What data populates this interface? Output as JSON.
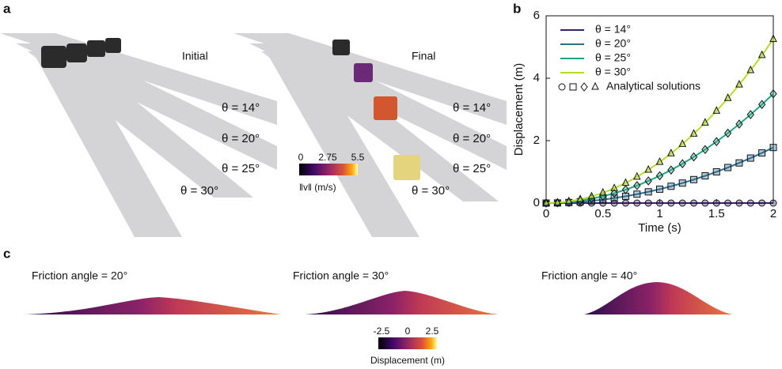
{
  "panel_a": {
    "label": "a",
    "initial": "Initial",
    "final": "Final",
    "angles_initial": [
      "θ = 14°",
      "θ = 20°",
      "θ = 25°",
      "θ = 30°"
    ],
    "angles_final": [
      "θ = 14°",
      "θ = 20°",
      "θ = 25°",
      "θ = 30°"
    ],
    "colorbar": {
      "ticks": [
        "0",
        "2.75",
        "5.5"
      ],
      "label": "‖v‖ (m/s)"
    }
  },
  "chart_data": {
    "type": "line",
    "panel_label": "b",
    "x_label": "Time (s)",
    "y_label": "Displacement (m)",
    "x": [
      0,
      0.1,
      0.2,
      0.3,
      0.4,
      0.5,
      0.6,
      0.7,
      0.8,
      0.9,
      1,
      1.1,
      1.2,
      1.3,
      1.4,
      1.5,
      1.6,
      1.7,
      1.8,
      1.9,
      2
    ],
    "series": [
      {
        "name": "θ = 14°",
        "color": "#3b1f6b",
        "marker": "circle",
        "values": [
          0,
          0,
          0,
          0,
          0,
          0,
          0,
          0,
          0,
          0,
          0,
          0,
          0,
          0,
          0,
          0,
          0,
          0,
          0,
          0,
          0
        ]
      },
      {
        "name": "θ = 20°",
        "color": "#2e6e8e",
        "marker": "square",
        "values": [
          0,
          0.004,
          0.018,
          0.04,
          0.071,
          0.111,
          0.16,
          0.218,
          0.285,
          0.36,
          0.445,
          0.538,
          0.641,
          0.752,
          0.872,
          1.001,
          1.139,
          1.286,
          1.442,
          1.606,
          1.78
        ]
      },
      {
        "name": "θ = 25°",
        "color": "#21a585",
        "marker": "diamond",
        "values": [
          0,
          0.009,
          0.035,
          0.079,
          0.14,
          0.219,
          0.315,
          0.429,
          0.56,
          0.709,
          0.875,
          1.059,
          1.26,
          1.479,
          1.715,
          1.969,
          2.24,
          2.529,
          2.835,
          3.159,
          3.5
        ]
      },
      {
        "name": "θ = 30°",
        "color": "#b5de2b",
        "marker": "triangle",
        "values": [
          0,
          0.013,
          0.053,
          0.118,
          0.21,
          0.328,
          0.473,
          0.643,
          0.84,
          1.063,
          1.313,
          1.588,
          1.89,
          2.218,
          2.573,
          2.953,
          3.36,
          3.793,
          4.253,
          4.738,
          5.25
        ]
      }
    ],
    "marker_legend_label": "Analytical solutions",
    "xlim": [
      0,
      2
    ],
    "xticks": [
      0,
      0.5,
      1,
      1.5,
      2
    ],
    "ylim": [
      0,
      6
    ],
    "yticks": [
      0,
      2,
      4,
      6
    ],
    "legend": "upper left",
    "grid": false
  },
  "panel_c": {
    "label": "c",
    "titles": [
      "Friction angle = 20°",
      "Friction angle = 30°",
      "Friction angle = 40°"
    ],
    "colorbar": {
      "ticks": [
        "-2.5",
        "0",
        "2.5"
      ],
      "label": "Displacement (m)"
    }
  }
}
